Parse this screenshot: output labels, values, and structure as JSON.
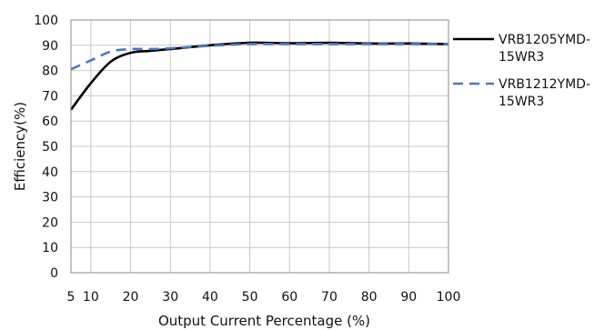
{
  "chart_data": {
    "type": "line",
    "title": "",
    "xlabel": "Output Current Percentage (%)",
    "ylabel": "Efficiency(%)",
    "xlim": [
      5,
      100
    ],
    "ylim": [
      0,
      100
    ],
    "x_ticks": [
      5,
      10,
      20,
      30,
      40,
      50,
      60,
      70,
      80,
      90,
      100
    ],
    "y_ticks": [
      0,
      10,
      20,
      30,
      40,
      50,
      60,
      70,
      80,
      90,
      100
    ],
    "grid": true,
    "legend_position": "right",
    "series": [
      {
        "name": "VRB1205YMD-15WR3",
        "legend_lines": [
          "VRB1205YMD-",
          "15WR3"
        ],
        "color": "#000000",
        "dash": "solid",
        "points": [
          [
            5,
            64.5
          ],
          [
            10,
            75
          ],
          [
            15,
            83.5
          ],
          [
            20,
            87
          ],
          [
            25,
            87.8
          ],
          [
            30,
            88.5
          ],
          [
            40,
            90
          ],
          [
            50,
            91
          ],
          [
            60,
            90.8
          ],
          [
            70,
            91
          ],
          [
            80,
            90.7
          ],
          [
            90,
            90.7
          ],
          [
            100,
            90.5
          ]
        ]
      },
      {
        "name": "VRB1212YMD-15WR3",
        "legend_lines": [
          "VRB1212YMD-",
          "15WR3"
        ],
        "color": "#4a79c0",
        "dash": "dashed",
        "points": [
          [
            5,
            80.5
          ],
          [
            10,
            84
          ],
          [
            15,
            87.5
          ],
          [
            20,
            88.5
          ],
          [
            25,
            88.5
          ],
          [
            30,
            88.8
          ],
          [
            40,
            89.8
          ],
          [
            50,
            90.5
          ],
          [
            60,
            90.5
          ],
          [
            70,
            90.5
          ],
          [
            80,
            90.5
          ],
          [
            90,
            90.5
          ],
          [
            100,
            90.5
          ]
        ]
      }
    ]
  }
}
